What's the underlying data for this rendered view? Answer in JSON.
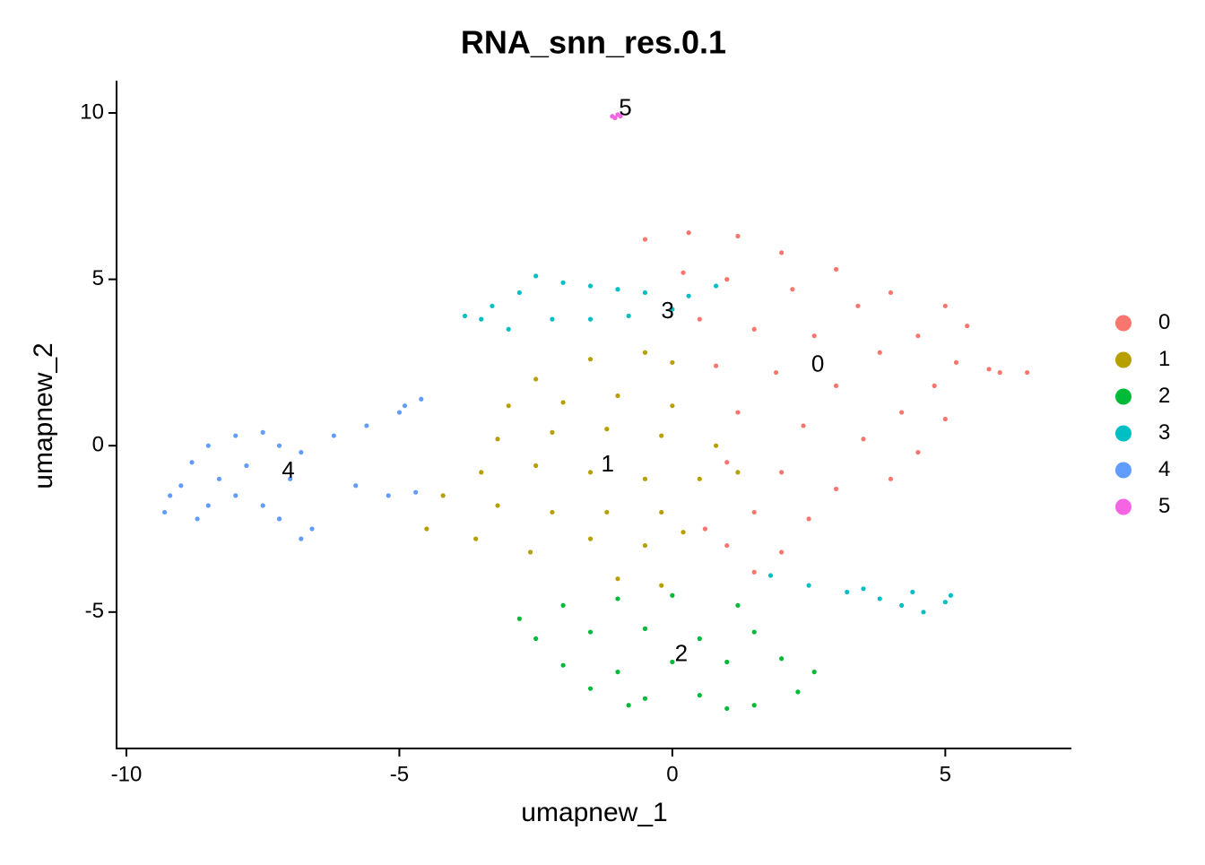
{
  "chart_data": {
    "type": "scatter",
    "title": "RNA_snn_res.0.1",
    "x_label": "umapnew_1",
    "y_label": "umapnew_2",
    "xlim": [
      -10.18,
      7.31
    ],
    "ylim": [
      -9.1,
      10.97
    ],
    "xticks": [
      -10,
      -5,
      0,
      5
    ],
    "yticks": [
      -5,
      0,
      5,
      10
    ],
    "grid": false,
    "legend": "right",
    "series": [
      {
        "name": "0",
        "color": "#F8766D",
        "x": [
          -0.5,
          0.3,
          1.2,
          2.0,
          3.0,
          4.0,
          5.0,
          5.4,
          0.2,
          1.0,
          2.2,
          3.4,
          4.5,
          5.2,
          0.5,
          1.5,
          2.6,
          3.8,
          4.8,
          0.8,
          1.9,
          3.0,
          4.2,
          5.0,
          1.2,
          2.4,
          3.5,
          4.5,
          1.0,
          2.0,
          3.0,
          4.0,
          1.5,
          2.5,
          1.0,
          2.0,
          1.5,
          0.6,
          6.0,
          6.5,
          5.8
        ],
        "y": [
          6.2,
          6.4,
          6.3,
          5.8,
          5.3,
          4.6,
          4.2,
          3.6,
          5.2,
          5.0,
          4.7,
          4.2,
          3.3,
          2.5,
          3.8,
          3.5,
          3.3,
          2.8,
          1.8,
          2.4,
          2.2,
          1.8,
          1.0,
          0.8,
          1.0,
          0.6,
          0.2,
          -0.2,
          -0.5,
          -0.8,
          -1.3,
          -1.0,
          -2.0,
          -2.2,
          -3.0,
          -3.2,
          -3.8,
          -2.5,
          2.2,
          2.2,
          2.3
        ]
      },
      {
        "name": "1",
        "color": "#B79F00",
        "x": [
          -2.5,
          -1.5,
          -0.5,
          0.0,
          -3.0,
          -2.0,
          -1.0,
          0.0,
          -3.2,
          -2.2,
          -1.2,
          -0.2,
          0.8,
          -3.5,
          -2.5,
          -1.5,
          -0.5,
          0.5,
          1.2,
          -4.2,
          -3.2,
          -2.2,
          -1.2,
          -0.2,
          -4.5,
          -3.6,
          -2.6,
          -1.5,
          -0.5,
          0.2,
          -1.0,
          -0.2
        ],
        "y": [
          2.0,
          2.6,
          2.8,
          2.5,
          1.2,
          1.3,
          1.5,
          1.2,
          0.2,
          0.4,
          0.5,
          0.3,
          0.0,
          -0.8,
          -0.6,
          -0.8,
          -1.0,
          -1.0,
          -0.8,
          -1.5,
          -1.8,
          -2.0,
          -2.0,
          -2.0,
          -2.5,
          -2.8,
          -3.2,
          -2.8,
          -3.0,
          -2.6,
          -4.0,
          -4.2
        ]
      },
      {
        "name": "2",
        "color": "#00BA38",
        "x": [
          -2.8,
          -2.0,
          -1.0,
          0.0,
          1.2,
          -2.5,
          -1.5,
          -0.5,
          0.5,
          1.5,
          -2.0,
          -1.0,
          0.0,
          1.0,
          2.0,
          2.6,
          -1.5,
          -0.5,
          0.5,
          1.5,
          2.3,
          -0.8,
          1.0
        ],
        "y": [
          -5.2,
          -4.8,
          -4.6,
          -4.5,
          -4.8,
          -5.8,
          -5.6,
          -5.5,
          -5.8,
          -5.6,
          -6.6,
          -6.8,
          -6.5,
          -6.5,
          -6.4,
          -6.8,
          -7.3,
          -7.6,
          -7.5,
          -7.8,
          -7.4,
          -7.8,
          -7.9
        ]
      },
      {
        "name": "3",
        "color": "#00BFC4",
        "x": [
          -3.8,
          -3.3,
          -2.8,
          -2.5,
          -2.0,
          -1.5,
          -1.0,
          -0.5,
          0.3,
          0.8,
          -3.0,
          -2.2,
          -1.5,
          -0.8,
          0.0,
          -3.5,
          1.8,
          2.5,
          3.2,
          3.8,
          4.2,
          4.6,
          5.0,
          5.1,
          3.5,
          4.4
        ],
        "y": [
          3.9,
          4.2,
          4.6,
          5.1,
          4.9,
          4.8,
          4.7,
          4.6,
          4.5,
          4.8,
          3.5,
          3.8,
          3.8,
          3.9,
          4.1,
          3.8,
          -3.9,
          -4.2,
          -4.4,
          -4.6,
          -4.8,
          -5.0,
          -4.7,
          -4.5,
          -4.3,
          -4.4
        ]
      },
      {
        "name": "4",
        "color": "#619CFF",
        "x": [
          -9.3,
          -9.0,
          -8.8,
          -8.5,
          -8.0,
          -7.5,
          -7.2,
          -7.8,
          -8.3,
          -8.7,
          -8.0,
          -7.5,
          -7.2,
          -6.8,
          -6.6,
          -7.0,
          -6.8,
          -6.2,
          -5.6,
          -5.0,
          -4.6,
          -4.9,
          -5.8,
          -5.2,
          -4.7,
          -8.5,
          -9.2
        ],
        "y": [
          -2.0,
          -1.2,
          -0.5,
          0.0,
          0.3,
          0.4,
          0.0,
          -0.6,
          -1.0,
          -2.2,
          -1.5,
          -1.8,
          -2.2,
          -2.8,
          -2.5,
          -1.0,
          -0.2,
          0.3,
          0.6,
          1.0,
          1.4,
          1.2,
          -1.2,
          -1.5,
          -1.4,
          -1.8,
          -1.5
        ]
      },
      {
        "name": "5",
        "color": "#F564E3",
        "x": [
          -1.1,
          -1.0,
          -0.95,
          -1.05
        ],
        "y": [
          9.9,
          9.95,
          9.9,
          9.85
        ]
      }
    ]
  }
}
